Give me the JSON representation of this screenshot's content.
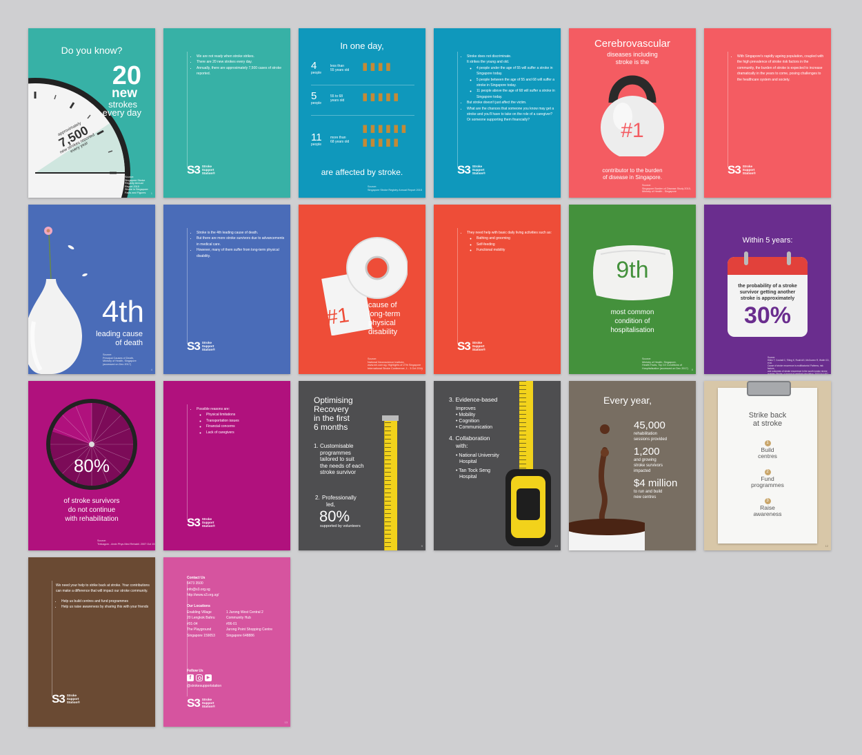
{
  "logo": {
    "mark": "S3",
    "line1": "Stroke",
    "line2": "Support",
    "line3": "Station®"
  },
  "c1": {
    "title": "Do you know?",
    "big": "20",
    "w1": "new",
    "w2": "strokes",
    "w3": "every day",
    "a1": "approximately",
    "a2": "7,500",
    "a3": "new strokes reported",
    "a4": "every year",
    "src": [
      "Source:",
      "Singapore Stroke",
      "Registry Annual",
      "Report 2015",
      "Stroke in Singapore:",
      "Facts and Figures"
    ],
    "pn": "1"
  },
  "c2": {
    "items": [
      "We are not ready when stroke strikes.",
      "There are 20 new strokes every day.",
      "Annually, there are approximately 7,500 cases of stroke reported."
    ]
  },
  "c3": {
    "title": "In one day,",
    "rows": [
      {
        "num": "4",
        "unit": "people",
        "l1": "less than",
        "l2": "55 years old"
      },
      {
        "num": "5",
        "unit": "people",
        "l1": "55 to 68",
        "l2": "years old"
      },
      {
        "num": "11",
        "unit": "people",
        "l1": "more than",
        "l2": "68 years old"
      }
    ],
    "bottom": "are affected by stroke.",
    "src": [
      "Source:",
      "Singapore Stroke Registry Annual Report 2015"
    ]
  },
  "c4": {
    "i1": "Stroke does not discriminate.",
    "i1b": "It strikes the young and old.",
    "s1": "4 people under the age of 55 will suffer a stroke in Singapore today.",
    "s2": "5 people between the age of 55 and 68 will suffer a stroke in Singapore today.",
    "s3": "11 people above the age of 68 will suffer a stroke in Singapore today.",
    "i2": "But stroke doesn't just affect the victim.",
    "i3": "What are the chances that someone you know may get a stroke and you'll have to take on the role of a caregiver? Or someone supporting them financially?"
  },
  "c5": {
    "title": "Cerebrovascular",
    "sub1": "diseases including",
    "sub2": "stroke is the",
    "rank": "#1",
    "b1": "contributor to the burden",
    "b2": "of disease in Singapore.",
    "src": [
      "Source:",
      "Singapore Burden of Disease Study 2010,",
      "Ministry of Health - Singapore"
    ]
  },
  "c6": {
    "text": "With Singapore's rapidly ageing population, coupled with the high prevalence of stroke risk factors in the community, the burden of stroke is expected to increase dramatically in the years to come, posing challenges to the healthcare system and society."
  },
  "c7": {
    "big": "4th",
    "l1": "leading cause",
    "l2": "of death",
    "src": [
      "Source:",
      "Principal Causes of Death,",
      "Ministry of Health, Singapore",
      "(accessed on Dec 2017)"
    ],
    "pn": "4"
  },
  "c8": {
    "items": [
      "Stroke is the 4th leading cause of death.",
      "But there are more stroke survivors due to advancements in medical care.",
      "However, many of them suffer from long-term physical disability."
    ]
  },
  "c9": {
    "rank": "#1",
    "l1": "cause of",
    "l2": "long-term",
    "l3": "physical",
    "l4": "disability",
    "src": [
      "Source:",
      "National Neuroscience Institute,",
      "www.nni.com.sg. Highlights of 27th Singapore",
      "International Stroke Conference, 1 - 3 Oct 2016"
    ],
    "pn": "7"
  },
  "c10": {
    "intro": "They need help with basic daily living activities such as:",
    "subs": [
      "Bathing and grooming",
      "Self-feeding",
      "Functional mobility"
    ]
  },
  "c11": {
    "big": "9th",
    "l1": "most common",
    "l2": "condition of",
    "l3": "hospitalisation",
    "src": [
      "Source:",
      "Ministry of Health, Singapore,",
      "Health Facts, Top 10 Conditions of",
      "Hospitalisation (accessed on Dec 2017)"
    ],
    "pn": "8"
  },
  "c12": {
    "title": "Within 5 years:",
    "p1": "the probability of a stroke",
    "p2": "survivor getting another",
    "p3": "stroke is approximately",
    "pct": "30%",
    "src": [
      "Source:",
      "Hillen T, Coshall C, Tilling K, Rudd AG, McGovern R, Wolfe CD, et al.",
      "Cause of stroke recurrence is multifactorial: Patterns, risk factors,",
      "and outcomes of stroke recurrence in the south london stroke",
      "register. Stroke: a journal of cerebral circulation. 2003;34:1457-1463"
    ]
  },
  "c13": {
    "pct": "80%",
    "l1": "of stroke survivors",
    "l2": "do not continue",
    "l3": "with rehabilitation",
    "src": [
      "Source:",
      "Trekagom - Amin Phys Med Rehabil. 2007 Oct 15"
    ]
  },
  "c14": {
    "intro": "Possible reasons are:",
    "subs": [
      "Physical limitations",
      "Transportation issues",
      "Financial concerns",
      "Lack of caregivers"
    ]
  },
  "c15": {
    "t1": "Optimising",
    "t2": "Recovery",
    "t3": "in the first",
    "t4": "6 months",
    "p1n": "1.",
    "p1": [
      "Customisable",
      "programmes",
      "tailored to suit",
      "the needs of each",
      "stroke survivor"
    ],
    "p2n": "2.",
    "p2": [
      "Professionally",
      "led,"
    ],
    "pct": "80%",
    "vol": "supported by volunteers",
    "pn": "9"
  },
  "c16": {
    "h3": "3. Evidence-based",
    "imp": "Improves",
    "b": [
      "• Mobility",
      "• Cognition",
      "• Communication"
    ],
    "h4a": "4. Collaboration",
    "h4b": "with:",
    "n1": [
      "• National University",
      "Hospital"
    ],
    "n2": [
      "• Tan Tock Seng",
      "Hospital"
    ],
    "pn": "10"
  },
  "c17": {
    "title": "Every year,",
    "v1": "45,000",
    "v1a": "rehabilitation",
    "v1b": "sessions provided",
    "v2": "1,200",
    "v2a": "and growing",
    "v2b": "stroke survivors",
    "v2c": "impacted",
    "v3": "$4 million",
    "v3a": "to run and build",
    "v3b": "new centres"
  },
  "c18": {
    "t1": "Strike back",
    "t2": "at stroke",
    "n1": "1",
    "s1a": "Build",
    "s1b": "centres",
    "n2": "2",
    "s2a": "Fund",
    "s2b": "programmes",
    "n3": "3",
    "s3a": "Raise",
    "s3b": "awareness",
    "pn": "12"
  },
  "c19": {
    "intro": "We need your help to strike back at stroke. Your contributions can make a difference that will impact our stroke community.",
    "items": [
      "Help us build centres and fund programmes",
      "Help us raise awareness by sharing this with your friends"
    ]
  },
  "c20": {
    "contact": "Contact Us",
    "phone": "6473 3500",
    "email": "info@s3.org.sg",
    "web": "http://www.s3.org.sg/",
    "loc": "Our Locations",
    "locA": [
      "Enabling Village",
      "20 Lengkok Bahru",
      "#01-04",
      "The Playground",
      "Singapore 159053"
    ],
    "locB": [
      "1 Jurong West Central 2",
      "Community Hub",
      "#06-01",
      "Jurong Point Shopping Centre",
      "Singapore 648886"
    ],
    "follow": "Follow Us",
    "handle": "@strokesupportstation",
    "pn": "13"
  },
  "colors": {
    "teal": "#37b1a6",
    "blue": "#0f98bc",
    "coral": "#f45c62",
    "periwinkle": "#4a6cb8",
    "orange": "#ee4d38",
    "green": "#44913c",
    "purple": "#6a2d8e",
    "magenta": "#b0117d",
    "gray": "#4e4e50",
    "taupe": "#786e62",
    "kraft": "#d8c7a8",
    "brown": "#6a4a33",
    "pink": "#d6549f",
    "bullet": "#c48a36"
  }
}
